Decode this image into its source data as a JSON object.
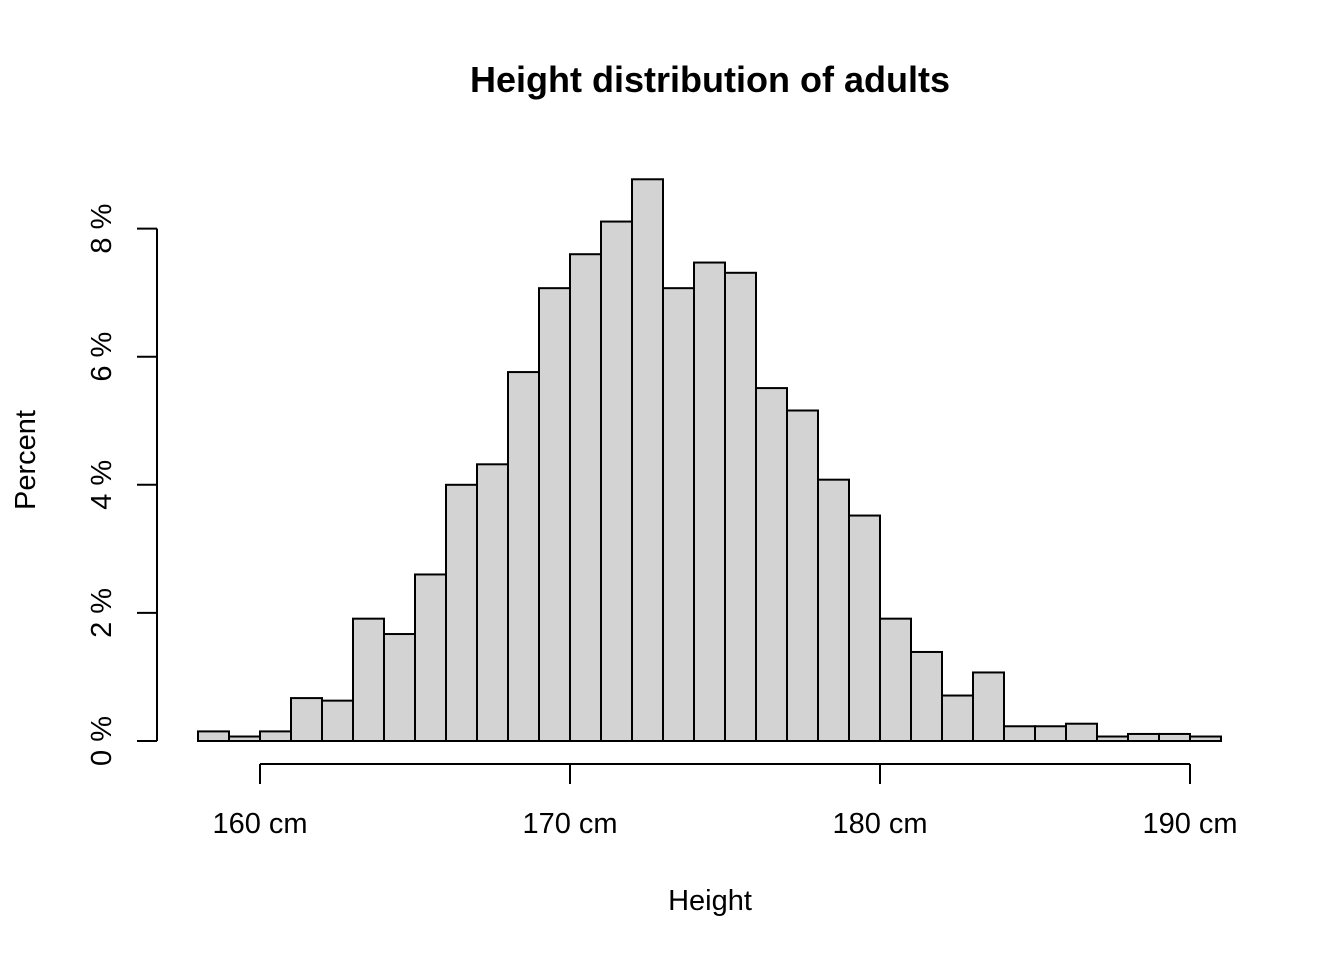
{
  "chart_data": {
    "type": "bar",
    "title": "Height distribution of adults",
    "xlabel": "Height",
    "ylabel": "Percent",
    "bin_width": 1,
    "bin_edges_start": 158,
    "bins": [
      {
        "from": 158,
        "to": 159,
        "value": 0.15
      },
      {
        "from": 159,
        "to": 160,
        "value": 0.07
      },
      {
        "from": 160,
        "to": 161,
        "value": 0.15
      },
      {
        "from": 161,
        "to": 162,
        "value": 0.67
      },
      {
        "from": 162,
        "to": 163,
        "value": 0.63
      },
      {
        "from": 163,
        "to": 164,
        "value": 1.91
      },
      {
        "from": 164,
        "to": 165,
        "value": 1.67
      },
      {
        "from": 165,
        "to": 166,
        "value": 2.6
      },
      {
        "from": 166,
        "to": 167,
        "value": 4.0
      },
      {
        "from": 167,
        "to": 168,
        "value": 4.32
      },
      {
        "from": 168,
        "to": 169,
        "value": 5.76
      },
      {
        "from": 169,
        "to": 170,
        "value": 7.07
      },
      {
        "from": 170,
        "to": 171,
        "value": 7.6
      },
      {
        "from": 171,
        "to": 172,
        "value": 8.11
      },
      {
        "from": 172,
        "to": 173,
        "value": 8.77
      },
      {
        "from": 173,
        "to": 174,
        "value": 7.07
      },
      {
        "from": 174,
        "to": 175,
        "value": 7.47
      },
      {
        "from": 175,
        "to": 176,
        "value": 7.31
      },
      {
        "from": 176,
        "to": 177,
        "value": 5.51
      },
      {
        "from": 177,
        "to": 178,
        "value": 5.16
      },
      {
        "from": 178,
        "to": 179,
        "value": 4.08
      },
      {
        "from": 179,
        "to": 180,
        "value": 3.52
      },
      {
        "from": 180,
        "to": 181,
        "value": 1.91
      },
      {
        "from": 181,
        "to": 182,
        "value": 1.39
      },
      {
        "from": 182,
        "to": 183,
        "value": 0.71
      },
      {
        "from": 183,
        "to": 184,
        "value": 1.07
      },
      {
        "from": 184,
        "to": 185,
        "value": 0.23
      },
      {
        "from": 185,
        "to": 186,
        "value": 0.23
      },
      {
        "from": 186,
        "to": 187,
        "value": 0.27
      },
      {
        "from": 187,
        "to": 188,
        "value": 0.07
      },
      {
        "from": 188,
        "to": 189,
        "value": 0.11
      },
      {
        "from": 189,
        "to": 190,
        "value": 0.11
      },
      {
        "from": 190,
        "to": 191,
        "value": 0.07
      }
    ],
    "x_ticks": [
      {
        "value": 160,
        "label": "160 cm"
      },
      {
        "value": 170,
        "label": "170 cm"
      },
      {
        "value": 180,
        "label": "180 cm"
      },
      {
        "value": 190,
        "label": "190 cm"
      }
    ],
    "y_ticks": [
      {
        "value": 0,
        "label": "0 %"
      },
      {
        "value": 2,
        "label": "2 %"
      },
      {
        "value": 4,
        "label": "4 %"
      },
      {
        "value": 6,
        "label": "6 %"
      },
      {
        "value": 8,
        "label": "8 %"
      }
    ],
    "xlim": [
      158,
      191
    ],
    "ylim": [
      0,
      8.77
    ],
    "grid": false,
    "bar_fill": "#d3d3d3",
    "bar_stroke": "#000000"
  }
}
